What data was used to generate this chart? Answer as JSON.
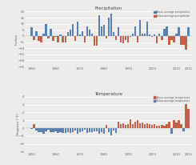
{
  "title_precip": "Precipitation",
  "title_temp": "Temperature",
  "ylabel_precip": "Inches",
  "ylabel_temp": "Degrees (°F)",
  "legend_above_precip": "Above-average precipitation",
  "legend_below_precip": "Below-average precipitation",
  "legend_above_temp": "Above-average temperature",
  "legend_below_temp": "Below-average temperature",
  "color_above": "#5b7faf",
  "color_below": "#c0614e",
  "years": [
    1950,
    1951,
    1952,
    1953,
    1954,
    1955,
    1956,
    1957,
    1958,
    1959,
    1960,
    1961,
    1962,
    1963,
    1964,
    1965,
    1966,
    1967,
    1968,
    1969,
    1970,
    1971,
    1972,
    1973,
    1974,
    1975,
    1976,
    1977,
    1978,
    1979,
    1980,
    1981,
    1982,
    1983,
    1984,
    1985,
    1986,
    1987,
    1988,
    1989,
    1990,
    1991,
    1992,
    1993,
    1994,
    1995,
    1996,
    1997,
    1998,
    1999,
    2000,
    2001,
    2002,
    2003,
    2004,
    2005,
    2006,
    2007,
    2008,
    2009,
    2010,
    2011,
    2012,
    2013,
    2014,
    2015
  ],
  "precip": [
    7,
    -3,
    4,
    -4,
    -5,
    2,
    10,
    -2,
    6,
    -4,
    -1,
    -5,
    1,
    -5,
    -5,
    3,
    5,
    10,
    -4,
    12,
    1,
    4,
    -5,
    8,
    5,
    2,
    -8,
    -8,
    17,
    8,
    9,
    -2,
    15,
    18,
    3,
    -3,
    7,
    -5,
    -6,
    -3,
    -5,
    -1,
    2,
    8,
    -5,
    13,
    2,
    2,
    12,
    1,
    -1,
    1,
    -6,
    2,
    -3,
    6,
    8,
    -7,
    -3,
    -5,
    2,
    7,
    -7,
    -7,
    -11,
    7
  ],
  "temp": [
    -0.1,
    0.5,
    -0.3,
    -0.5,
    -0.5,
    -0.7,
    -0.4,
    -0.2,
    -0.5,
    -0.5,
    -0.4,
    -0.6,
    -0.5,
    -0.6,
    -0.6,
    -0.5,
    -0.6,
    -0.5,
    -0.3,
    -0.7,
    -0.5,
    -0.4,
    -0.2,
    -0.6,
    -0.5,
    -0.5,
    -0.4,
    -0.4,
    -0.7,
    -0.5,
    -0.7,
    0.4,
    -0.5,
    -0.9,
    -0.3,
    -0.6,
    0.8,
    0.5,
    0.6,
    0.4,
    0.5,
    1.1,
    0.5,
    0.8,
    1.0,
    0.6,
    0.7,
    0.5,
    0.6,
    0.5,
    0.4,
    0.5,
    0.3,
    0.3,
    0.4,
    0.3,
    0.5,
    0.8,
    -0.7,
    1.0,
    0.7,
    1.0,
    0.5,
    -0.4,
    3.1,
    2.5
  ],
  "ylim_precip": [
    -25,
    20
  ],
  "ylim_temp": [
    -3,
    4
  ],
  "yticks_precip": [
    -25,
    -20,
    -15,
    -10,
    -5,
    0,
    5,
    10,
    15,
    20
  ],
  "yticks_temp": [
    -3,
    -2,
    -1,
    0,
    1,
    2,
    3,
    4
  ],
  "xticks": [
    1950,
    1960,
    1970,
    1980,
    1990,
    2000,
    2010,
    2015
  ],
  "bg_color": "#eeecea"
}
